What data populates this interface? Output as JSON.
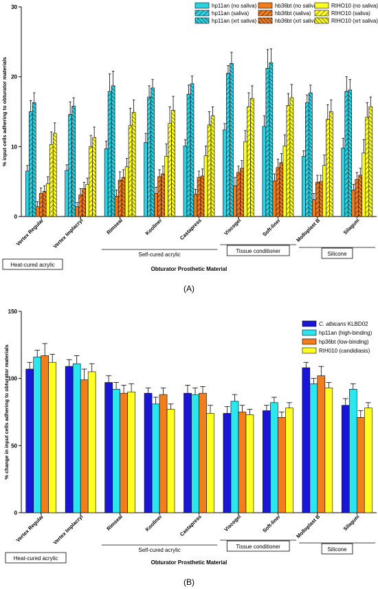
{
  "panel_a_label": "(A)",
  "panel_b_label": "(B)",
  "chart_data": [
    {
      "type": "bar",
      "panel": "A",
      "ylabel": "% input cells adhering to obturator materials",
      "xlabel": "Obturator Prosthetic Material",
      "ylim": [
        0,
        30
      ],
      "yticks": [
        0,
        10,
        20,
        30
      ],
      "grid": false,
      "legend_position": "top-right",
      "categories": [
        "Vertex Regular",
        "Vertex Implacryl",
        "Rimseal",
        "Kooliner",
        "Castapress",
        "Viscogel",
        "Soft-liner",
        "Molloplast B",
        "Silagum"
      ],
      "groups": [
        {
          "label": "Heat-cured acrylic",
          "first": 0,
          "last": 1
        },
        {
          "label": "Self-cured acrylic",
          "first": 2,
          "last": 4
        },
        {
          "label": "Tissue conditioner",
          "first": 5,
          "last": 6
        },
        {
          "label": "Silicone",
          "first": 7,
          "last": 8
        }
      ],
      "series": [
        {
          "name": "hp11an (no saliva)",
          "color": "#2ad4e4",
          "pattern": "none",
          "values": [
            6.5,
            6.6,
            9.7,
            10.6,
            10.1,
            12.4,
            12.9,
            8.6,
            9.8
          ],
          "errors": [
            0.8,
            0.8,
            1.1,
            1.3,
            0.9,
            0.9,
            1.5,
            0.8,
            1.4
          ]
        },
        {
          "name": "hp11an (saliva)",
          "color": "#2ad4e4",
          "pattern": "diag",
          "values": [
            15.0,
            14.6,
            17.9,
            17.1,
            17.5,
            20.5,
            21.2,
            16.3,
            17.9
          ],
          "errors": [
            1.6,
            1.8,
            2.5,
            1.6,
            1.3,
            1.1,
            2.7,
            1.1,
            2.1
          ]
        },
        {
          "name": "hp11an (xrt saliva)",
          "color": "#2ad4e4",
          "pattern": "diag-thick",
          "values": [
            16.3,
            15.8,
            18.7,
            18.4,
            19.0,
            21.9,
            22.0,
            17.7,
            18.1
          ],
          "errors": [
            1.4,
            1.2,
            2.1,
            1.2,
            1.1,
            1.6,
            2.0,
            1.1,
            1.5
          ]
        },
        {
          "name": "hb36bt (no saliva)",
          "color": "#f07d1e",
          "pattern": "none",
          "values": [
            1.4,
            1.4,
            2.9,
            3.3,
            3.2,
            4.4,
            5.1,
            2.4,
            3.8
          ],
          "errors": [
            0.7,
            0.6,
            0.9,
            0.9,
            0.7,
            1.2,
            1.0,
            0.9,
            0.8
          ]
        },
        {
          "name": "hb36bt (saliva)",
          "color": "#f07d1e",
          "pattern": "diag",
          "values": [
            3.3,
            3.1,
            5.2,
            5.7,
            5.6,
            6.3,
            7.0,
            4.9,
            5.3
          ],
          "errors": [
            0.8,
            0.9,
            1.2,
            1.0,
            0.9,
            0.9,
            1.2,
            1.0,
            1.0
          ]
        },
        {
          "name": "hb36bt (xrt saliva)",
          "color": "#f07d1e",
          "pattern": "diag-thick",
          "values": [
            3.6,
            4.0,
            5.6,
            6.1,
            5.8,
            6.9,
            7.7,
            5.0,
            5.9
          ],
          "errors": [
            0.8,
            0.9,
            1.1,
            1.1,
            1.0,
            1.1,
            1.3,
            0.9,
            1.0
          ]
        },
        {
          "name": "RIHO10 (no saliva)",
          "color": "#ffff22",
          "pattern": "none",
          "values": [
            4.7,
            4.6,
            7.1,
            8.6,
            8.7,
            10.7,
            10.1,
            7.3,
            9.1
          ],
          "errors": [
            1.0,
            0.9,
            1.2,
            1.8,
            1.4,
            1.6,
            1.6,
            1.5,
            1.9
          ]
        },
        {
          "name": "RIHO10  (saliva)",
          "color": "#ffff22",
          "pattern": "diag",
          "values": [
            10.3,
            10.0,
            13.0,
            13.3,
            13.1,
            15.7,
            15.9,
            13.9,
            14.2
          ],
          "errors": [
            1.8,
            1.6,
            2.5,
            2.4,
            1.9,
            2.0,
            1.7,
            2.1,
            2.1
          ]
        },
        {
          "name": "RIHO10  (xrt saliva)",
          "color": "#ffff22",
          "pattern": "diag-thick",
          "values": [
            11.9,
            11.3,
            14.9,
            15.2,
            14.4,
            16.9,
            17.0,
            15.0,
            15.7
          ],
          "errors": [
            1.5,
            1.5,
            1.8,
            2.0,
            1.3,
            1.8,
            1.9,
            1.7,
            1.4
          ]
        }
      ]
    },
    {
      "type": "bar",
      "panel": "B",
      "ylabel": "% change in input cells adhering to obturator materials",
      "xlabel": "Obturator Prosthetic Material",
      "ylim": [
        0,
        150
      ],
      "yticks": [
        0,
        50,
        100,
        150
      ],
      "grid": false,
      "legend_position": "top-right",
      "categories": [
        "Vertex Regular",
        "Vertex Implacryl",
        "Rimseal",
        "Kooliner",
        "Castapress",
        "Viscogel",
        "Soft-liner",
        "Molloplast B",
        "Silagum"
      ],
      "groups": [
        {
          "label": "Heat-cured acrylic",
          "first": 0,
          "last": 1
        },
        {
          "label": "Self-cured acrylic",
          "first": 2,
          "last": 4
        },
        {
          "label": "Tissue conditioner",
          "first": 5,
          "last": 6
        },
        {
          "label": "Silicone",
          "first": 7,
          "last": 8
        }
      ],
      "series": [
        {
          "name_italic": "C. albicans",
          "name": " KLBD02",
          "color": "#1a16d8",
          "values": [
            107,
            109,
            97,
            89,
            89,
            74,
            76,
            108,
            80
          ],
          "errors": [
            5,
            5,
            5,
            4,
            6,
            5,
            4,
            4,
            5
          ]
        },
        {
          "name_italic": "",
          "name": "hp11an (high-binding)",
          "color": "#2ae6ee",
          "values": [
            116,
            111,
            92,
            81,
            88,
            83,
            82,
            96,
            92
          ],
          "errors": [
            5,
            6,
            5,
            5,
            5,
            5,
            4,
            4,
            4
          ]
        },
        {
          "name_italic": "",
          "name": "hp36bt (low-binding)",
          "color": "#f07d1e",
          "values": [
            117,
            99,
            89,
            88,
            89,
            75,
            71,
            102,
            71
          ],
          "errors": [
            9,
            8,
            6,
            5,
            5,
            5,
            4,
            7,
            5
          ]
        },
        {
          "name_italic": "",
          "name": "RIH010 (candidiasis)",
          "color": "#ffff22",
          "values": [
            112,
            105,
            90,
            77,
            74,
            73,
            78,
            93,
            78
          ],
          "errors": [
            6,
            6,
            6,
            4,
            6,
            4,
            4,
            4,
            4
          ]
        }
      ]
    }
  ]
}
